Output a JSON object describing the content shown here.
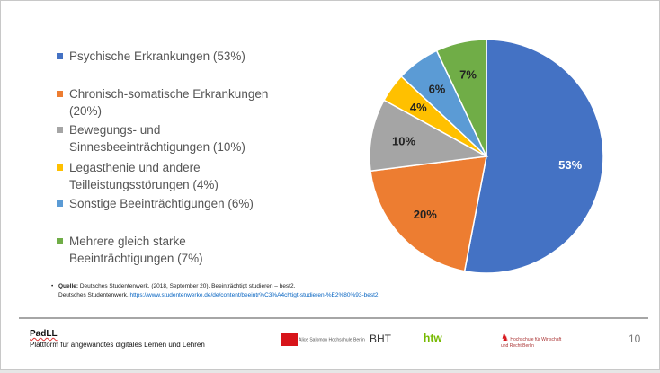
{
  "chart_data": {
    "type": "pie",
    "start": "top",
    "direction": "clockwise",
    "slices": [
      {
        "name": "Psychische Erkrankungen (53%)",
        "value": 53,
        "label": "53%",
        "color": "#4472c4"
      },
      {
        "name": "Chronisch-somatische Erkrankungen (20%)",
        "value": 20,
        "label": "20%",
        "color": "#ed7d31"
      },
      {
        "name": "Bewegungs- und Sinnesbeeinträchtigungen (10%)",
        "value": 10,
        "label": "10%",
        "color": "#a5a5a5"
      },
      {
        "name": "Legasthenie und andere Teilleistungsstörungen (4%)",
        "value": 4,
        "label": "4%",
        "color": "#ffc000"
      },
      {
        "name": "Sonstige Beeinträchtigungen (6%)",
        "value": 6,
        "label": "6%",
        "color": "#5b9bd5"
      },
      {
        "name": "Mehrere gleich starke Beeinträchtigungen (7%)",
        "value": 7,
        "label": "7%",
        "color": "#70ad47"
      }
    ]
  },
  "legend": [
    {
      "lines": [
        "Psychische Erkrankungen (53%)"
      ],
      "color": "#4472c4"
    },
    {
      "lines": [
        "Chronisch-somatische Erkrankungen",
        "(20%)"
      ],
      "color": "#ed7d31"
    },
    {
      "lines": [
        "Bewegungs- und",
        "Sinnesbeeinträchtigungen (10%)"
      ],
      "color": "#a5a5a5"
    },
    {
      "lines": [
        "Legasthenie und andere",
        "Teilleistungsstörungen (4%)"
      ],
      "color": "#ffc000"
    },
    {
      "lines": [
        "Sonstige Beeinträchtigungen (6%)"
      ],
      "color": "#5b9bd5"
    },
    {
      "lines": [
        "Mehrere gleich starke",
        "Beeinträchtigungen (7%)"
      ],
      "color": "#70ad47"
    }
  ],
  "source": {
    "label": "Quelle:",
    "line1": " Deutsches Studentenwerk. (2018, September 20). Beeinträchtigt studieren – best2.",
    "line2": "Deutsches Studentenwerk. ",
    "link": "https://www.studentenwerke.de/de/content/beeintr%C3%A4chtigt-studieren-%E2%80%93-best2"
  },
  "footer": {
    "brand": "PadLL",
    "tagline": "Plattform für angewandtes digitales Lernen und Lehren",
    "page_number": "10",
    "logos": [
      "Alice Salomon Hochschule Berlin",
      "BHT",
      "htw",
      "Hochschule für Wirtschaft und Recht Berlin"
    ]
  }
}
